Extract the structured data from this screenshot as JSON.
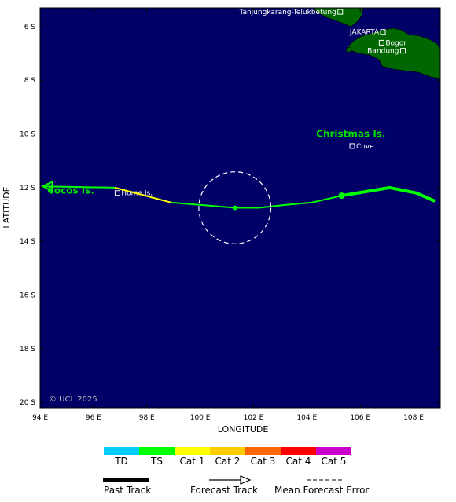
{
  "map": {
    "xlabel": "LONGITUDE",
    "ylabel": "LATITUDE",
    "lon_range": [
      94,
      109
    ],
    "lat_range": [
      -5.3,
      -20.2
    ],
    "ocean_color": "#000066",
    "land_color": "#006600",
    "lon_ticks": [
      {
        "value": 94,
        "label": "94 E"
      },
      {
        "value": 96,
        "label": "96 E"
      },
      {
        "value": 98,
        "label": "98 E"
      },
      {
        "value": 100,
        "label": "100 E"
      },
      {
        "value": 102,
        "label": "102 E"
      },
      {
        "value": 104,
        "label": "104 E"
      },
      {
        "value": 106,
        "label": "106 E"
      },
      {
        "value": 108,
        "label": "108 E"
      }
    ],
    "lat_ticks": [
      {
        "value": -6,
        "label": "6 S"
      },
      {
        "value": -8,
        "label": "8 S"
      },
      {
        "value": -10,
        "label": "10 S"
      },
      {
        "value": -12,
        "label": "12 S"
      },
      {
        "value": -14,
        "label": "14 S"
      },
      {
        "value": -16,
        "label": "16 S"
      },
      {
        "value": -18,
        "label": "18 S"
      },
      {
        "value": -20,
        "label": "20 S"
      }
    ],
    "places": [
      {
        "name": "Tanjungkarang-Telukbetung",
        "lon": 105.25,
        "lat": -5.45,
        "label_side": "left"
      },
      {
        "name": "JAKARTA",
        "lon": 106.85,
        "lat": -6.2,
        "label_side": "left"
      },
      {
        "name": "Bogor",
        "lon": 106.8,
        "lat": -6.6,
        "label_side": "right"
      },
      {
        "name": "Bandung",
        "lon": 107.6,
        "lat": -6.9,
        "label_side": "left"
      },
      {
        "name": "Home Is.",
        "lon": 96.9,
        "lat": -12.2,
        "label_side": "right"
      },
      {
        "name": "Cove",
        "lon": 105.7,
        "lat": -10.45,
        "label_side": "right"
      }
    ],
    "islands": [
      {
        "name": "Christmas Is.",
        "lon": 105.65,
        "lat": -10.0
      },
      {
        "name": "Cocos Is.",
        "lon": 95.15,
        "lat": -12.1
      }
    ],
    "copyright": "© UCL 2025",
    "past_track": {
      "category": "TS",
      "points": [
        {
          "lon": 108.8,
          "lat": -12.5
        },
        {
          "lon": 108.1,
          "lat": -12.2
        },
        {
          "lon": 107.1,
          "lat": -12.0
        },
        {
          "lon": 105.3,
          "lat": -12.3
        }
      ],
      "current_position": {
        "lon": 105.3,
        "lat": -12.3
      }
    },
    "forecast_track": {
      "segments": [
        {
          "category": "TS",
          "points": [
            {
              "lon": 105.3,
              "lat": -12.3
            },
            {
              "lon": 104.2,
              "lat": -12.55
            },
            {
              "lon": 103.1,
              "lat": -12.65
            },
            {
              "lon": 102.2,
              "lat": -12.75
            },
            {
              "lon": 101.3,
              "lat": -12.75
            },
            {
              "lon": 98.9,
              "lat": -12.55
            }
          ]
        },
        {
          "category": "Cat 1",
          "points": [
            {
              "lon": 98.9,
              "lat": -12.55
            },
            {
              "lon": 96.8,
              "lat": -12.0
            }
          ]
        },
        {
          "category": "TS",
          "points": [
            {
              "lon": 96.8,
              "lat": -12.0
            },
            {
              "lon": 94.1,
              "lat": -11.95
            }
          ]
        }
      ],
      "forecast_point": {
        "lon": 101.3,
        "lat": -12.75
      },
      "error_circle": {
        "lon": 101.3,
        "lat": -12.75,
        "radius_deg": 1.35
      }
    },
    "category_colors": {
      "TD": "#00ccff",
      "TS": "#00ff00",
      "Cat 1": "#ffff00",
      "Cat 2": "#ffcc00",
      "Cat 3": "#ff6600",
      "Cat 4": "#ff0000",
      "Cat 5": "#cc00cc"
    }
  },
  "legend": {
    "categories": [
      {
        "label": "TD",
        "color": "#00ccff"
      },
      {
        "label": "TS",
        "color": "#00ff00"
      },
      {
        "label": "Cat 1",
        "color": "#ffff00"
      },
      {
        "label": "Cat 2",
        "color": "#ffcc00"
      },
      {
        "label": "Cat 3",
        "color": "#ff6600"
      },
      {
        "label": "Cat 4",
        "color": "#ff0000"
      },
      {
        "label": "Cat 5",
        "color": "#cc00cc"
      }
    ],
    "past_track_label": "Past Track",
    "forecast_track_label": "Forecast Track",
    "error_label": "Mean Forecast Error"
  }
}
